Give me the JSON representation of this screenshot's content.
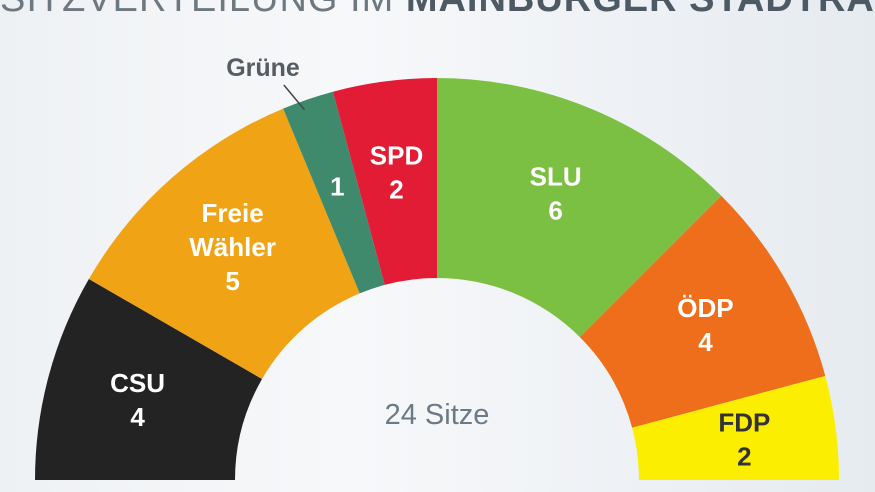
{
  "chart_data": {
    "type": "pie",
    "subtype": "semicircle-parliament",
    "title_light": "SITZVERTEILUNG IM",
    "title_bold": "MAINBURGER STADTRAT",
    "center_label": "24 Sitze",
    "total": 24,
    "series": [
      {
        "name": "CSU",
        "label_lines": [
          "CSU"
        ],
        "value": 4,
        "color": "#232323",
        "text_color": "#ffffff"
      },
      {
        "name": "Freie Wähler",
        "label_lines": [
          "Freie",
          "Wähler"
        ],
        "value": 5,
        "color": "#f0a415",
        "text_color": "#ffffff"
      },
      {
        "name": "Grüne",
        "label_lines": [],
        "value": 1,
        "color": "#3f8a6d",
        "text_color": "#ffffff",
        "outside_label": "Grüne"
      },
      {
        "name": "SPD",
        "label_lines": [
          "SPD"
        ],
        "value": 2,
        "color": "#e21c34",
        "text_color": "#ffffff"
      },
      {
        "name": "SLU",
        "label_lines": [
          "SLU"
        ],
        "value": 6,
        "color": "#7bc043",
        "text_color": "#ffffff"
      },
      {
        "name": "ÖDP",
        "label_lines": [
          "ÖDP"
        ],
        "value": 4,
        "color": "#ee6e1c",
        "text_color": "#ffffff"
      },
      {
        "name": "FDP",
        "label_lines": [
          "FDP"
        ],
        "value": 2,
        "color": "#fbee00",
        "text_color": "#333333"
      }
    ]
  }
}
